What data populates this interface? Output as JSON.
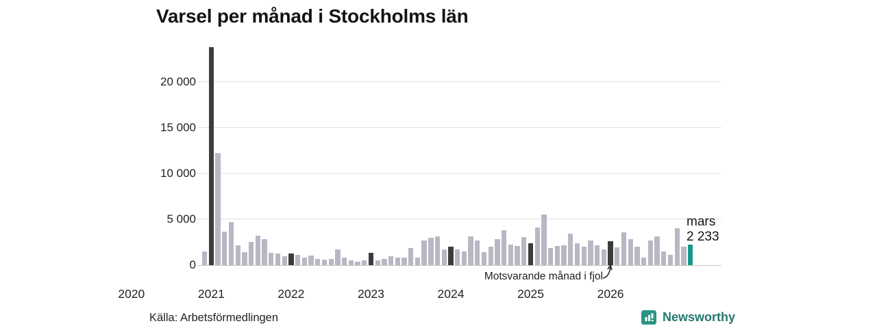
{
  "title": "Varsel per månad i Stockholms län",
  "source": "Källa: Arbetsförmedlingen",
  "branding": {
    "name": "Newsworthy"
  },
  "annotation": {
    "text": "Motsvarande månad i fjol"
  },
  "current_point": {
    "month_label": "mars",
    "value_label": "2 233"
  },
  "colors": {
    "bar_normal": "#b9b7c4",
    "bar_last_year_month": "#3d3d3d",
    "bar_current": "#18988a",
    "grid": "#e3e3e3",
    "axis_line": "#c6c6c6",
    "brand_icon": "#2c9386",
    "brand_text": "#24786e",
    "text": "#222222"
  },
  "chart_data": {
    "type": "bar",
    "title": "Varsel per månad i Stockholms län",
    "xlabel": "",
    "ylabel": "",
    "ylim": [
      0,
      23800
    ],
    "yticks": [
      0,
      5000,
      10000,
      15000,
      20000
    ],
    "ytick_labels": [
      "0",
      "5 000",
      "10 000",
      "15 000",
      "20 000"
    ],
    "year_labels": [
      "2020",
      "2021",
      "2022",
      "2023",
      "2024",
      "2025",
      "2026"
    ],
    "grid": "horizontal",
    "legend": "none",
    "highlight_note": "dark bars = March of each year (motsvarande månad i fjol); teal bar = current month mars 2026 = 2 233",
    "points": [
      [
        "2020-02",
        1500,
        ""
      ],
      [
        "2020-03",
        23800,
        "fjol"
      ],
      [
        "2020-04",
        12200,
        ""
      ],
      [
        "2020-05",
        3650,
        ""
      ],
      [
        "2020-06",
        4700,
        ""
      ],
      [
        "2020-07",
        2150,
        ""
      ],
      [
        "2020-08",
        1400,
        ""
      ],
      [
        "2020-09",
        2500,
        ""
      ],
      [
        "2020-10",
        3200,
        ""
      ],
      [
        "2020-11",
        2800,
        ""
      ],
      [
        "2020-12",
        1350,
        ""
      ],
      [
        "2021-01",
        1300,
        ""
      ],
      [
        "2021-02",
        950,
        ""
      ],
      [
        "2021-03",
        1300,
        "fjol"
      ],
      [
        "2021-04",
        1150,
        ""
      ],
      [
        "2021-05",
        800,
        ""
      ],
      [
        "2021-06",
        1050,
        ""
      ],
      [
        "2021-07",
        650,
        ""
      ],
      [
        "2021-08",
        600,
        ""
      ],
      [
        "2021-09",
        700,
        ""
      ],
      [
        "2021-10",
        1700,
        ""
      ],
      [
        "2021-11",
        850,
        ""
      ],
      [
        "2021-12",
        500,
        ""
      ],
      [
        "2022-01",
        400,
        ""
      ],
      [
        "2022-02",
        550,
        ""
      ],
      [
        "2022-03",
        1350,
        "fjol"
      ],
      [
        "2022-04",
        500,
        ""
      ],
      [
        "2022-05",
        650,
        ""
      ],
      [
        "2022-06",
        1000,
        ""
      ],
      [
        "2022-07",
        800,
        ""
      ],
      [
        "2022-08",
        850,
        ""
      ],
      [
        "2022-09",
        1850,
        ""
      ],
      [
        "2022-10",
        800,
        ""
      ],
      [
        "2022-11",
        2700,
        ""
      ],
      [
        "2022-12",
        2950,
        ""
      ],
      [
        "2023-01",
        3100,
        ""
      ],
      [
        "2023-02",
        1700,
        ""
      ],
      [
        "2023-03",
        2000,
        "fjol"
      ],
      [
        "2023-04",
        1700,
        ""
      ],
      [
        "2023-05",
        1500,
        ""
      ],
      [
        "2023-06",
        3100,
        ""
      ],
      [
        "2023-07",
        2700,
        ""
      ],
      [
        "2023-08",
        1450,
        ""
      ],
      [
        "2023-09",
        2050,
        ""
      ],
      [
        "2023-10",
        2850,
        ""
      ],
      [
        "2023-11",
        3800,
        ""
      ],
      [
        "2023-12",
        2250,
        ""
      ],
      [
        "2024-01",
        2100,
        ""
      ],
      [
        "2024-02",
        3050,
        ""
      ],
      [
        "2024-03",
        2400,
        "fjol"
      ],
      [
        "2024-04",
        4100,
        ""
      ],
      [
        "2024-05",
        5550,
        ""
      ],
      [
        "2024-06",
        1850,
        ""
      ],
      [
        "2024-07",
        2100,
        ""
      ],
      [
        "2024-08",
        2150,
        ""
      ],
      [
        "2024-09",
        3400,
        ""
      ],
      [
        "2024-10",
        2400,
        ""
      ],
      [
        "2024-11",
        2050,
        ""
      ],
      [
        "2024-12",
        2650,
        ""
      ],
      [
        "2025-01",
        2150,
        ""
      ],
      [
        "2025-02",
        1700,
        ""
      ],
      [
        "2025-03",
        2600,
        "fjol"
      ],
      [
        "2025-04",
        1950,
        ""
      ],
      [
        "2025-05",
        3550,
        ""
      ],
      [
        "2025-06",
        2800,
        ""
      ],
      [
        "2025-07",
        2050,
        ""
      ],
      [
        "2025-08",
        800,
        ""
      ],
      [
        "2025-09",
        2650,
        ""
      ],
      [
        "2025-10",
        3100,
        ""
      ],
      [
        "2025-11",
        1500,
        ""
      ],
      [
        "2025-12",
        1100,
        ""
      ],
      [
        "2026-01",
        4000,
        ""
      ],
      [
        "2026-02",
        2050,
        ""
      ],
      [
        "2026-03",
        2233,
        "current"
      ]
    ]
  }
}
